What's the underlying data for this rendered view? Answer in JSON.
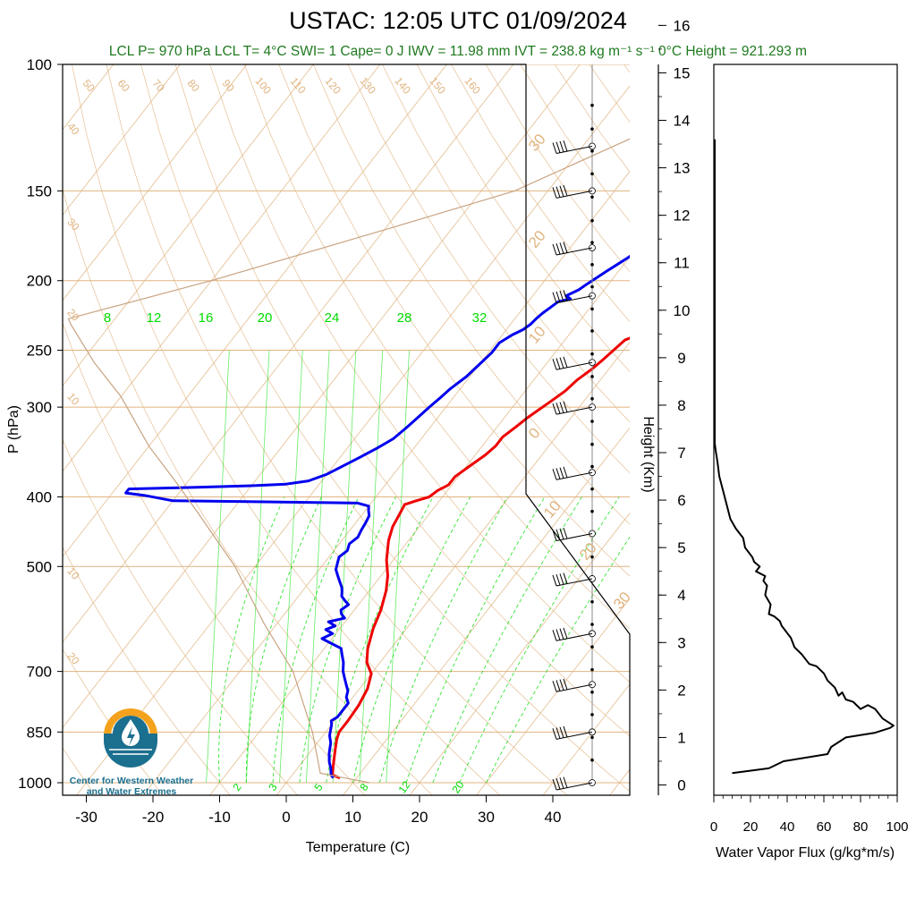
{
  "title": "USTAC: 12:05 UTC 01/09/2024",
  "subtitle": "LCL P= 970 hPa  LCL T= 4°C  SWI= 1  Cape= 0 J  IWV = 11.98 mm  IVT = 238.8 kg m⁻¹ s⁻¹  0°C Height = 921.293 m",
  "logo": {
    "line1": "Center for Western Weather",
    "line2": "and Water Extremes",
    "colors": {
      "orange": "#f4a21d",
      "teal": "#1b6f8f",
      "water": "#2a8fb5"
    }
  },
  "colors": {
    "temperature": "#ee0000",
    "dewpoint": "#0000ee",
    "isotherm": "#e0b480",
    "mixing_ratio": "#00dd00",
    "parcel": "#c8a482",
    "flux": "#000000"
  },
  "chart_data": [
    {
      "type": "line",
      "name": "skew-t",
      "xlabel": "Temperature (C)",
      "ylabel": "P (hPa)",
      "x_ticks": [
        -30,
        -20,
        -10,
        0,
        10,
        20,
        30,
        40
      ],
      "y_ticks": [
        100,
        150,
        200,
        250,
        300,
        400,
        500,
        700,
        850,
        1000
      ],
      "y_scale": "log",
      "xlim": [
        -34,
        50
      ],
      "ylim": [
        1050,
        100
      ],
      "series": [
        {
          "name": "Temperature",
          "points": [
            [
              7.5,
              985
            ],
            [
              6,
              975
            ],
            [
              5,
              945
            ],
            [
              4.5,
              930
            ],
            [
              3.5,
              900
            ],
            [
              2.5,
              870
            ],
            [
              2,
              850
            ],
            [
              2,
              820
            ],
            [
              1.8,
              780
            ],
            [
              1.2,
              740
            ],
            [
              0,
              705
            ],
            [
              -2,
              680
            ],
            [
              -3.5,
              650
            ],
            [
              -5,
              610
            ],
            [
              -6,
              575
            ],
            [
              -7.5,
              540
            ],
            [
              -9,
              515
            ],
            [
              -11,
              490
            ],
            [
              -13,
              460
            ],
            [
              -14,
              440
            ],
            [
              -14.5,
              420
            ],
            [
              -14.8,
              410
            ],
            [
              -13.5,
              405
            ],
            [
              -12,
              400
            ],
            [
              -11.5,
              392
            ],
            [
              -10.5,
              385
            ],
            [
              -10.5,
              375
            ],
            [
              -9.5,
              362
            ],
            [
              -8.5,
              350
            ],
            [
              -8,
              340
            ],
            [
              -8,
              330
            ],
            [
              -7.2,
              320
            ],
            [
              -6.5,
              310
            ],
            [
              -6,
              305
            ],
            [
              -5,
              295
            ],
            [
              -4,
              285
            ],
            [
              -3.5,
              275
            ],
            [
              -2.5,
              265
            ],
            [
              -2,
              258
            ],
            [
              -1.5,
              250
            ],
            [
              -1,
              242
            ],
            [
              1,
              236
            ],
            [
              2,
              234
            ],
            [
              4,
              232
            ],
            [
              5,
              230
            ],
            [
              4,
              226
            ],
            [
              3,
              222
            ],
            [
              3.5,
              218
            ],
            [
              2.8,
              214
            ],
            [
              2,
              210
            ],
            [
              1.5,
              206
            ],
            [
              1.2,
              202
            ],
            [
              1,
              198
            ],
            [
              0.7,
              194
            ],
            [
              1,
              189
            ],
            [
              1.8,
              186
            ],
            [
              2.5,
              182
            ],
            [
              3.5,
              178
            ],
            [
              4.2,
              174
            ],
            [
              5,
              172
            ],
            [
              6,
              170
            ],
            [
              7,
              168
            ],
            [
              8.5,
              166
            ],
            [
              9.5,
              164
            ],
            [
              9.5,
              162
            ],
            [
              10,
              160
            ],
            [
              9.8,
              158
            ],
            [
              9.5,
              155
            ],
            [
              9.2,
              153
            ],
            [
              8.5,
              150
            ],
            [
              8.5,
              149
            ]
          ]
        },
        {
          "name": "Dewpoint",
          "points": [
            [
              6.5,
              985
            ],
            [
              5.8,
              975
            ],
            [
              5,
              955
            ],
            [
              4,
              935
            ],
            [
              3,
              910
            ],
            [
              2,
              880
            ],
            [
              1,
              860
            ],
            [
              0.5,
              845
            ],
            [
              0,
              830
            ],
            [
              -0.5,
              820
            ],
            [
              0,
              810
            ],
            [
              0,
              790
            ],
            [
              0,
              775
            ],
            [
              -1,
              760
            ],
            [
              -1.5,
              745
            ],
            [
              -2.5,
              730
            ],
            [
              -3.5,
              715
            ],
            [
              -4.5,
              700
            ],
            [
              -5.5,
              680
            ],
            [
              -6.5,
              665
            ],
            [
              -7.5,
              650
            ],
            [
              -9.5,
              640
            ],
            [
              -11.5,
              630
            ],
            [
              -10.5,
              620
            ],
            [
              -12,
              612
            ],
            [
              -11,
              605
            ],
            [
              -12.5,
              597
            ],
            [
              -10.5,
              590
            ],
            [
              -11.5,
              582
            ],
            [
              -12,
              575
            ],
            [
              -11.5,
              565
            ],
            [
              -12.5,
              558
            ],
            [
              -13.5,
              550
            ],
            [
              -14,
              542
            ],
            [
              -14.5,
              535
            ],
            [
              -15.5,
              525
            ],
            [
              -16.5,
              515
            ],
            [
              -17.5,
              505
            ],
            [
              -18,
              495
            ],
            [
              -18.5,
              485
            ],
            [
              -18,
              475
            ],
            [
              -18.5,
              465
            ],
            [
              -18,
              455
            ],
            [
              -18.3,
              445
            ],
            [
              -18.5,
              435
            ],
            [
              -18.8,
              425
            ],
            [
              -19.5,
              418
            ],
            [
              -20,
              412
            ],
            [
              -22,
              408
            ],
            [
              -40,
              406
            ],
            [
              -50,
              405
            ],
            [
              -55,
              398
            ],
            [
              -58,
              395
            ],
            [
              -58,
              390
            ],
            [
              -48,
              388
            ],
            [
              -40,
              386
            ],
            [
              -35,
              384
            ],
            [
              -32,
              380
            ],
            [
              -30,
              372
            ],
            [
              -28.5,
              362
            ],
            [
              -27,
              352
            ],
            [
              -25.5,
              342
            ],
            [
              -24.2,
              332
            ],
            [
              -23.5,
              320
            ],
            [
              -23,
              310
            ],
            [
              -22.5,
              300
            ],
            [
              -22,
              292
            ],
            [
              -21.5,
              283
            ],
            [
              -20.5,
              272
            ],
            [
              -20,
              262
            ],
            [
              -19.5,
              252
            ],
            [
              -19.5,
              244
            ],
            [
              -18.5,
              238
            ],
            [
              -17.5,
              234
            ],
            [
              -17,
              230
            ],
            [
              -16.8,
              226
            ],
            [
              -16.5,
              222
            ],
            [
              -16,
              218
            ],
            [
              -15.5,
              214
            ],
            [
              -14,
              212
            ],
            [
              -15,
              210
            ],
            [
              -13.8,
              206
            ],
            [
              -13.2,
              202
            ],
            [
              -12.5,
              198
            ],
            [
              -11.8,
              194
            ],
            [
              -11,
              190
            ],
            [
              -10.2,
              186
            ],
            [
              -9.5,
              182
            ],
            [
              -8.8,
              178
            ],
            [
              -8,
              174
            ],
            [
              -7.3,
              170
            ],
            [
              -6.5,
              166
            ],
            [
              -5.8,
              162
            ],
            [
              -5,
              158
            ],
            [
              -4.3,
              154
            ],
            [
              -3.8,
              150
            ],
            [
              -3.5,
              148
            ]
          ]
        },
        {
          "name": "Parcel",
          "points": [
            [
              12.5,
              1000
            ],
            [
              4,
              970
            ],
            [
              -2,
              850
            ],
            [
              -12,
              700
            ],
            [
              -22,
              600
            ],
            [
              -33,
              500
            ],
            [
              -45,
              420
            ],
            [
              -52,
              380
            ],
            [
              -60,
              340
            ],
            [
              -70,
              290
            ],
            [
              -78,
              260
            ],
            [
              -86,
              230
            ],
            [
              -87,
              226
            ],
            [
              -70,
              200
            ],
            [
              -50,
              170
            ],
            [
              -35,
              150
            ],
            [
              -20,
              120
            ],
            [
              -5,
              100
            ]
          ]
        }
      ]
    },
    {
      "type": "line",
      "name": "water-vapor-flux",
      "xlabel": "Water Vapor Flux (g/kg*m/s)",
      "ylabel": "Height (Km)",
      "x_ticks": [
        0,
        20,
        40,
        60,
        80,
        100
      ],
      "y_ticks": [
        0,
        1,
        2,
        3,
        4,
        5,
        6,
        7,
        8,
        9,
        10,
        11,
        12,
        13,
        14,
        15,
        16
      ],
      "xlim": [
        0,
        100
      ],
      "ylim": [
        -0.2,
        16.3
      ],
      "series": [
        {
          "name": "Water Vapor Flux",
          "points": [
            [
              10,
              0.25
            ],
            [
              30,
              0.35
            ],
            [
              38,
              0.5
            ],
            [
              62,
              0.65
            ],
            [
              64,
              0.8
            ],
            [
              72,
              1.0
            ],
            [
              88,
              1.1
            ],
            [
              96,
              1.2
            ],
            [
              98,
              1.25
            ],
            [
              92,
              1.4
            ],
            [
              88,
              1.6
            ],
            [
              84,
              1.68
            ],
            [
              80,
              1.6
            ],
            [
              76,
              1.75
            ],
            [
              72,
              1.8
            ],
            [
              70,
              1.95
            ],
            [
              68,
              1.88
            ],
            [
              66,
              2.05
            ],
            [
              62,
              2.2
            ],
            [
              60,
              2.35
            ],
            [
              56,
              2.5
            ],
            [
              52,
              2.55
            ],
            [
              48,
              2.75
            ],
            [
              44,
              2.9
            ],
            [
              42,
              3.1
            ],
            [
              40,
              3.2
            ],
            [
              39,
              3.25
            ],
            [
              37,
              3.35
            ],
            [
              36,
              3.45
            ],
            [
              33,
              3.55
            ],
            [
              30,
              3.6
            ],
            [
              31,
              3.8
            ],
            [
              28,
              4.0
            ],
            [
              29,
              4.2
            ],
            [
              27,
              4.3
            ],
            [
              28,
              4.4
            ],
            [
              23,
              4.5
            ],
            [
              25,
              4.6
            ],
            [
              22,
              4.7
            ],
            [
              21,
              4.8
            ],
            [
              17,
              5.0
            ],
            [
              16,
              5.2
            ],
            [
              12,
              5.4
            ],
            [
              9,
              5.6
            ],
            [
              7,
              5.9
            ],
            [
              5,
              6.2
            ],
            [
              3,
              6.5
            ],
            [
              2,
              6.8
            ],
            [
              1,
              7.05
            ],
            [
              0.5,
              7.2
            ],
            [
              0.5,
              9
            ],
            [
              0.5,
              12
            ],
            [
              0.5,
              13.6
            ]
          ]
        }
      ]
    }
  ],
  "isotherm_labels": [
    "50",
    "60",
    "70",
    "80",
    "90",
    "100",
    "110",
    "120",
    "130",
    "140",
    "150",
    "160",
    "40",
    "30",
    "20",
    "10",
    "10",
    "20",
    "30",
    "20",
    "10",
    "0",
    "10",
    "20",
    "30"
  ],
  "mixing_ratio_top_labels": [
    "8",
    "12",
    "16",
    "20",
    "24",
    "28",
    "32"
  ],
  "mixing_ratio_bottom_labels": [
    "2",
    "3",
    "5",
    "8",
    "12",
    "20"
  ],
  "wind_levels": [
    130,
    150,
    180,
    210,
    260,
    300,
    370,
    450,
    520,
    620,
    730,
    850,
    1000
  ]
}
